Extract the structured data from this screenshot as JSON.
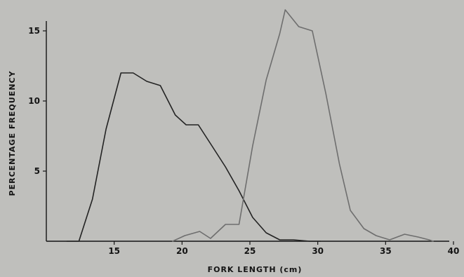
{
  "chart_data": {
    "type": "line",
    "title": "",
    "xlabel": "FORK LENGTH (cm)",
    "ylabel": "PERCENTAGE FREQUENCY",
    "xlim": [
      10,
      40
    ],
    "ylim": [
      0,
      16
    ],
    "x_ticks": [
      "15",
      "20",
      "25",
      "30",
      "35",
      "40"
    ],
    "y_ticks": [
      "5",
      "10",
      "15"
    ],
    "grid": false,
    "legend": "none",
    "series": [
      {
        "color": "#232323",
        "points": [
          [
            11.5,
            0
          ],
          [
            12.4,
            0
          ],
          [
            13.4,
            3
          ],
          [
            14.4,
            8
          ],
          [
            15.5,
            12
          ],
          [
            16.4,
            12
          ],
          [
            17.4,
            11.4
          ],
          [
            18.4,
            11.1
          ],
          [
            19.5,
            9
          ],
          [
            20.3,
            8.3
          ],
          [
            21.2,
            8.3
          ],
          [
            22.2,
            6.8
          ],
          [
            23.2,
            5.3
          ],
          [
            24.2,
            3.6
          ],
          [
            25.2,
            1.7
          ],
          [
            26.2,
            0.6
          ],
          [
            27.2,
            0.1
          ],
          [
            28.2,
            0.1
          ],
          [
            29.4,
            0
          ],
          [
            30.2,
            0
          ]
        ]
      },
      {
        "color": "#6e6e6e",
        "points": [
          [
            19.3,
            0
          ],
          [
            20.2,
            0.4
          ],
          [
            21.3,
            0.7
          ],
          [
            22.1,
            0.2
          ],
          [
            23.2,
            1.2
          ],
          [
            24.2,
            1.2
          ],
          [
            25.2,
            6.8
          ],
          [
            26.2,
            11.5
          ],
          [
            27.2,
            14.8
          ],
          [
            27.6,
            16.5
          ],
          [
            28.6,
            15.3
          ],
          [
            29.6,
            15
          ],
          [
            30.6,
            10.5
          ],
          [
            31.6,
            5.5
          ],
          [
            32.4,
            2.2
          ],
          [
            33.4,
            0.9
          ],
          [
            34.3,
            0.4
          ],
          [
            35.3,
            0.1
          ],
          [
            36.4,
            0.5
          ],
          [
            37.4,
            0.3
          ],
          [
            38.2,
            0.1
          ],
          [
            38.5,
            0
          ]
        ]
      }
    ]
  }
}
